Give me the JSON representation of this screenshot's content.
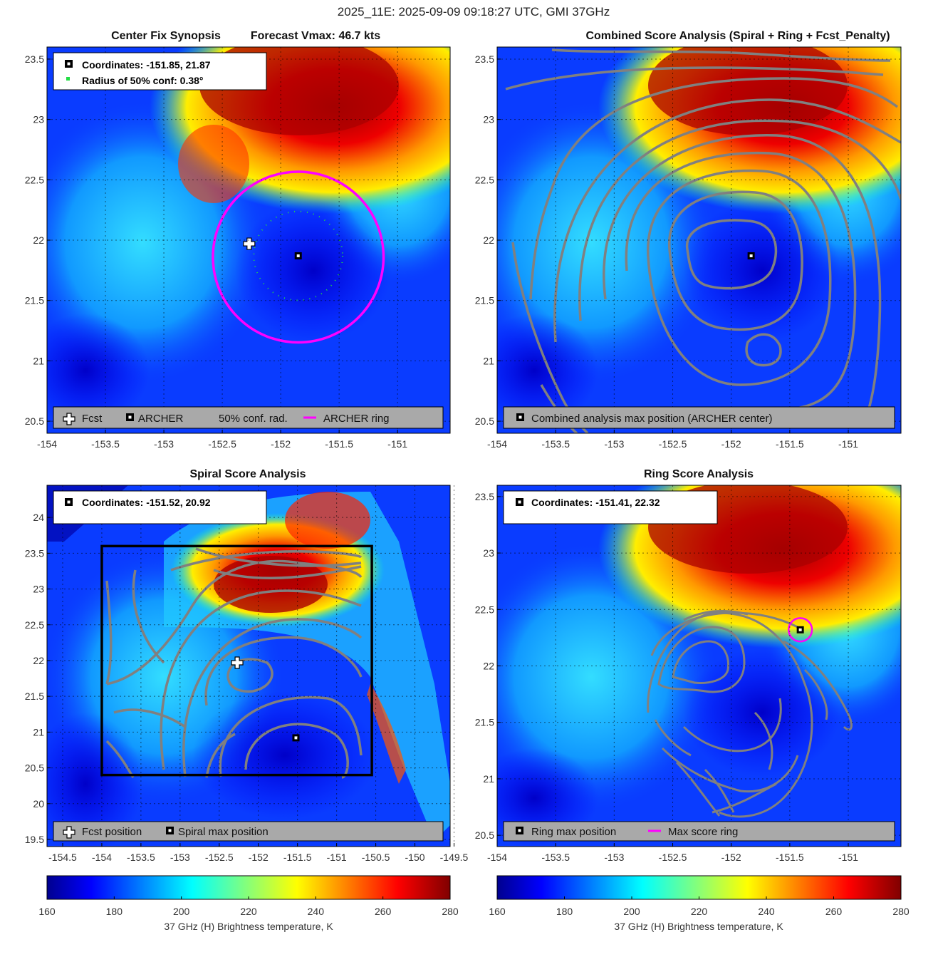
{
  "figure": {
    "title": "2025_11E: 2025-09-09 09:18:27 UTC, GMI 37GHz",
    "colors": {
      "accent_ring": "#ff00ff",
      "contour": "#808080",
      "legend_bg": "#a9a9a9",
      "conf_dot": "#22dd44"
    }
  },
  "chart_data": [
    {
      "id": "center-fix-synopsis",
      "type": "heatmap",
      "title_left": "Center Fix Synopsis",
      "title_right": "Forecast Vmax: 46.7 kts",
      "xlim": [
        -154,
        -150.55
      ],
      "ylim": [
        20.4,
        23.6
      ],
      "xticks": [
        -154,
        -153.5,
        -153,
        -152.5,
        -152,
        -151.5,
        -151
      ],
      "yticks": [
        20.5,
        21,
        21.5,
        22,
        22.5,
        23,
        23.5
      ],
      "info_lines": [
        "Coordinates: -151.85, 21.87",
        "Radius of 50% conf: 0.38°"
      ],
      "legend": [
        "Fcst",
        "ARCHER",
        "50% conf. rad.",
        "ARCHER ring"
      ],
      "markers": {
        "fcst": {
          "x": -152.27,
          "y": 21.97
        },
        "archer": {
          "x": -151.85,
          "y": 21.87
        },
        "archer_ring_radius_deg": 0.73,
        "conf_radius_deg": 0.38
      }
    },
    {
      "id": "combined-score-analysis",
      "type": "heatmap",
      "title": "Combined Score Analysis (Spiral + Ring + Fcst_Penalty)",
      "xlim": [
        -154,
        -150.55
      ],
      "ylim": [
        20.4,
        23.6
      ],
      "xticks": [
        -154,
        -153.5,
        -153,
        -152.5,
        -152,
        -151.5,
        -151
      ],
      "yticks": [
        20.5,
        21,
        21.5,
        22,
        22.5,
        23,
        23.5
      ],
      "legend": [
        "Combined analysis max position (ARCHER center)"
      ],
      "markers": {
        "max": {
          "x": -151.83,
          "y": 21.87
        }
      }
    },
    {
      "id": "spiral-score-analysis",
      "type": "heatmap",
      "title": "Spiral Score Analysis",
      "xlim": [
        -154.7,
        -149.55
      ],
      "ylim": [
        19.4,
        24.45
      ],
      "xticks": [
        -154.5,
        -154,
        -153.5,
        -153,
        -152.5,
        -152,
        -151.5,
        -151,
        -150.5,
        -150,
        -149.5
      ],
      "yticks": [
        19.5,
        20,
        20.5,
        21,
        21.5,
        22,
        22.5,
        23,
        23.5,
        24
      ],
      "info_lines": [
        "Coordinates: -151.52, 20.92"
      ],
      "legend": [
        "Fcst position",
        "Spiral max position"
      ],
      "markers": {
        "fcst": {
          "x": -152.27,
          "y": 21.97
        },
        "spiral_max": {
          "x": -151.52,
          "y": 20.92
        },
        "box": {
          "x0": -154,
          "x1": -150.55,
          "y0": 20.4,
          "y1": 23.6
        }
      }
    },
    {
      "id": "ring-score-analysis",
      "type": "heatmap",
      "title": "Ring Score Analysis",
      "xlim": [
        -154,
        -150.55
      ],
      "ylim": [
        20.4,
        23.6
      ],
      "xticks": [
        -154,
        -153.5,
        -153,
        -152.5,
        -152,
        -151.5,
        -151
      ],
      "yticks": [
        20.5,
        21,
        21.5,
        22,
        22.5,
        23,
        23.5
      ],
      "info_lines": [
        "Coordinates: -151.41, 22.32"
      ],
      "legend": [
        "Ring max position",
        "Max score ring"
      ],
      "markers": {
        "ring_max": {
          "x": -151.41,
          "y": 22.32
        },
        "ring_radius_deg": 0.1
      }
    }
  ],
  "colorbar": {
    "label": "37 GHz (H) Brightness temperature, K",
    "ticks": [
      160,
      180,
      200,
      220,
      240,
      260,
      280
    ],
    "range": [
      160,
      280
    ]
  }
}
